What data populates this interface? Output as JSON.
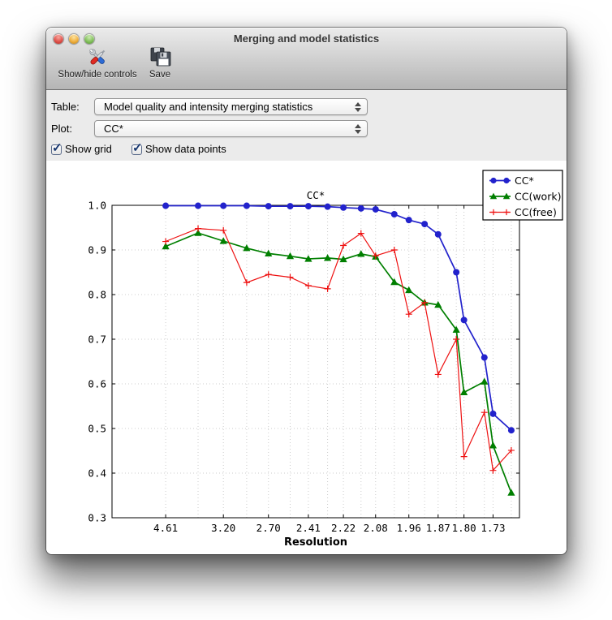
{
  "window": {
    "title": "Merging and model statistics"
  },
  "toolbar": {
    "items": [
      {
        "label": "Show/hide controls",
        "icon": "tools-icon"
      },
      {
        "label": "Save",
        "icon": "save-icon"
      }
    ]
  },
  "controls": {
    "table_label": "Table:",
    "table_value": "Model quality and intensity merging statistics",
    "plot_label": "Plot:",
    "plot_value": "CC*",
    "checkboxes": [
      {
        "label": "Show grid",
        "checked": true
      },
      {
        "label": "Show data points",
        "checked": true
      }
    ]
  },
  "chart_data": {
    "type": "line",
    "title": "CC*",
    "xlabel": "Resolution",
    "ylabel": "",
    "grid": true,
    "legend_position": "upper right",
    "ylim": [
      0.3,
      1.0
    ],
    "yticks": [
      0.3,
      0.4,
      0.5,
      0.6,
      0.7,
      0.8,
      0.9,
      1.0
    ],
    "x_scale": "inverse_d_squared",
    "xlim_inv_d2": [
      0.0,
      0.3573
    ],
    "x_resolution": [
      4.61,
      3.64,
      3.2,
      2.91,
      2.7,
      2.53,
      2.41,
      2.3,
      2.22,
      2.14,
      2.08,
      2.01,
      1.96,
      1.91,
      1.87,
      1.82,
      1.8,
      1.75,
      1.73,
      1.69
    ],
    "xtick_point_indices": [
      0,
      2,
      4,
      6,
      8,
      10,
      12,
      14,
      16,
      18
    ],
    "xtick_labels": [
      "4.61",
      "3.20",
      "2.70",
      "2.41",
      "2.22",
      "2.08",
      "1.96",
      "1.87",
      "1.80",
      "1.73"
    ],
    "grid_color": "#cccccc",
    "series": [
      {
        "name": "CC*",
        "color": "#2222cc",
        "marker": "circle",
        "values": [
          0.999,
          0.999,
          0.999,
          0.999,
          0.998,
          0.998,
          0.998,
          0.997,
          0.995,
          0.993,
          0.991,
          0.98,
          0.967,
          0.958,
          0.935,
          0.85,
          0.743,
          0.659,
          0.533,
          0.496
        ]
      },
      {
        "name": "CC(work)",
        "color": "#007f00",
        "marker": "triangle",
        "values": [
          0.908,
          0.938,
          0.92,
          0.904,
          0.892,
          0.886,
          0.88,
          0.882,
          0.879,
          0.891,
          0.885,
          0.828,
          0.81,
          0.782,
          0.777,
          0.721,
          0.581,
          0.605,
          0.462,
          0.356
        ]
      },
      {
        "name": "CC(free)",
        "color": "#ee1111",
        "marker": "plus",
        "values": [
          0.919,
          0.948,
          0.944,
          0.827,
          0.845,
          0.839,
          0.82,
          0.813,
          0.91,
          0.937,
          0.887,
          0.9,
          0.756,
          0.782,
          0.621,
          0.7,
          0.437,
          0.536,
          0.406,
          0.451
        ]
      }
    ]
  }
}
